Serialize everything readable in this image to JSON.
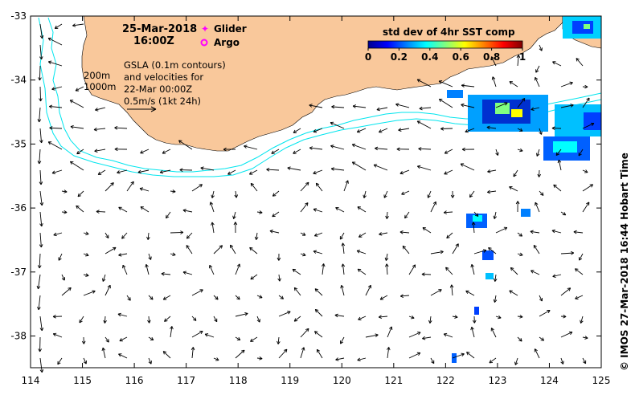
{
  "map": {
    "date": "25-Mar-2018",
    "time": "16:00Z",
    "legend": {
      "glider_label": "Glider",
      "argo_label": "Argo",
      "glider_color": "#ff00ff",
      "argo_color": "#ff00ff"
    },
    "notes": {
      "contour_200": "200m",
      "contour_1000": "1000m",
      "gsla_line1": "GSLA (0.1m contours)",
      "gsla_line2": "and velocities for",
      "gsla_line3": "22-Mar 00:00Z",
      "velocity_scale": "0.5m/s (1kt 24h)"
    },
    "colorbar": {
      "title": "std dev of 4hr SST comp",
      "ticks": [
        "0",
        "0.2",
        "0.4",
        "0.6",
        "0.8",
        "1"
      ],
      "colors": [
        "#00008f",
        "#0000ff",
        "#0080ff",
        "#00ffff",
        "#80ff80",
        "#ffff00",
        "#ff8000",
        "#ff0000",
        "#800000"
      ]
    },
    "x_ticks": [
      "114",
      "115",
      "116",
      "117",
      "118",
      "119",
      "120",
      "121",
      "122",
      "123",
      "124",
      "125"
    ],
    "y_ticks": [
      "-33",
      "-34",
      "-35",
      "-36",
      "-37",
      "-38"
    ],
    "land_color": "#f9c89b",
    "contour_color": "#00e5ee",
    "credit": "© IMOS 27-Mar-2018 16:44 Hobart Time"
  }
}
